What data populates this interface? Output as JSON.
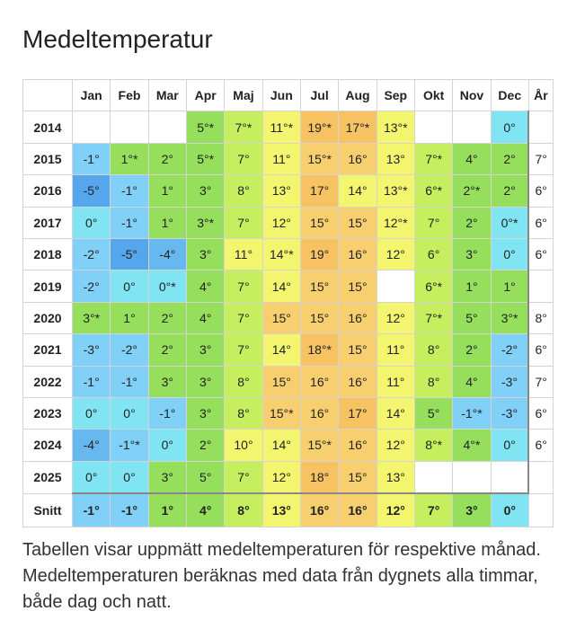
{
  "title": "Medeltemperatur",
  "table": {
    "header": [
      "Jan",
      "Feb",
      "Mar",
      "Apr",
      "Maj",
      "Jun",
      "Jul",
      "Aug",
      "Sep",
      "Okt",
      "Nov",
      "Dec",
      "År"
    ],
    "rows": [
      {
        "label": "2014",
        "cells": [
          null,
          null,
          null,
          "5°*",
          "7°*",
          "11°*",
          "19°*",
          "17°*",
          "13°*",
          null,
          null,
          "0°",
          null
        ]
      },
      {
        "label": "2015",
        "cells": [
          "-1°",
          "1°*",
          "2°",
          "5°*",
          "7°",
          "11°",
          "15°*",
          "16°",
          "13°",
          "7°*",
          "4°",
          "2°",
          "7°"
        ]
      },
      {
        "label": "2016",
        "cells": [
          "-5°",
          "-1°",
          "1°",
          "3°",
          "8°",
          "13°",
          "17°",
          "14°",
          "13°*",
          "6°*",
          "2°*",
          "2°",
          "6°"
        ]
      },
      {
        "label": "2017",
        "cells": [
          "0°",
          "-1°",
          "1°",
          "3°*",
          "7°",
          "12°",
          "15°",
          "15°",
          "12°*",
          "7°",
          "2°",
          "0°*",
          "6°"
        ]
      },
      {
        "label": "2018",
        "cells": [
          "-2°",
          "-5°",
          "-4°",
          "3°",
          "11°",
          "14°*",
          "19°",
          "16°",
          "12°",
          "6°",
          "3°",
          "0°",
          "6°"
        ]
      },
      {
        "label": "2019",
        "cells": [
          "-2°",
          "0°",
          "0°*",
          "4°",
          "7°",
          "14°",
          "15°",
          "15°",
          null,
          "6°*",
          "1°",
          "1°",
          null
        ]
      },
      {
        "label": "2020",
        "cells": [
          "3°*",
          "1°",
          "2°",
          "4°",
          "7°",
          "15°",
          "15°",
          "16°",
          "12°",
          "7°*",
          "5°",
          "3°*",
          "8°"
        ]
      },
      {
        "label": "2021",
        "cells": [
          "-3°",
          "-2°",
          "2°",
          "3°",
          "7°",
          "14°",
          "18°*",
          "15°",
          "11°",
          "8°",
          "2°",
          "-2°",
          "6°"
        ]
      },
      {
        "label": "2022",
        "cells": [
          "-1°",
          "-1°",
          "3°",
          "3°",
          "8°",
          "15°",
          "16°",
          "16°",
          "11°",
          "8°",
          "4°",
          "-3°",
          "7°"
        ]
      },
      {
        "label": "2023",
        "cells": [
          "0°",
          "0°",
          "-1°",
          "3°",
          "8°",
          "15°*",
          "16°",
          "17°",
          "14°",
          "5°",
          "-1°*",
          "-3°",
          "6°"
        ]
      },
      {
        "label": "2024",
        "cells": [
          "-4°",
          "-1°*",
          "0°",
          "2°",
          "10°",
          "14°",
          "15°*",
          "16°",
          "12°",
          "8°*",
          "4°*",
          "0°",
          "6°"
        ]
      },
      {
        "label": "2025",
        "cells": [
          "0°",
          "0°",
          "3°",
          "5°",
          "7°",
          "12°",
          "18°",
          "15°",
          "13°",
          null,
          null,
          null,
          null
        ]
      },
      {
        "label": "Snitt",
        "cells": [
          "-1°",
          "-1°",
          "1°",
          "4°",
          "8°",
          "13°",
          "16°",
          "16°",
          "12°",
          "7°",
          "3°",
          "0°",
          null
        ]
      }
    ]
  },
  "caption": "Tabellen visar uppmätt medeltemperaturen för respektive månad. Medeltemperaturen beräknas med data från dygnets alla timmar, både dag och natt."
}
